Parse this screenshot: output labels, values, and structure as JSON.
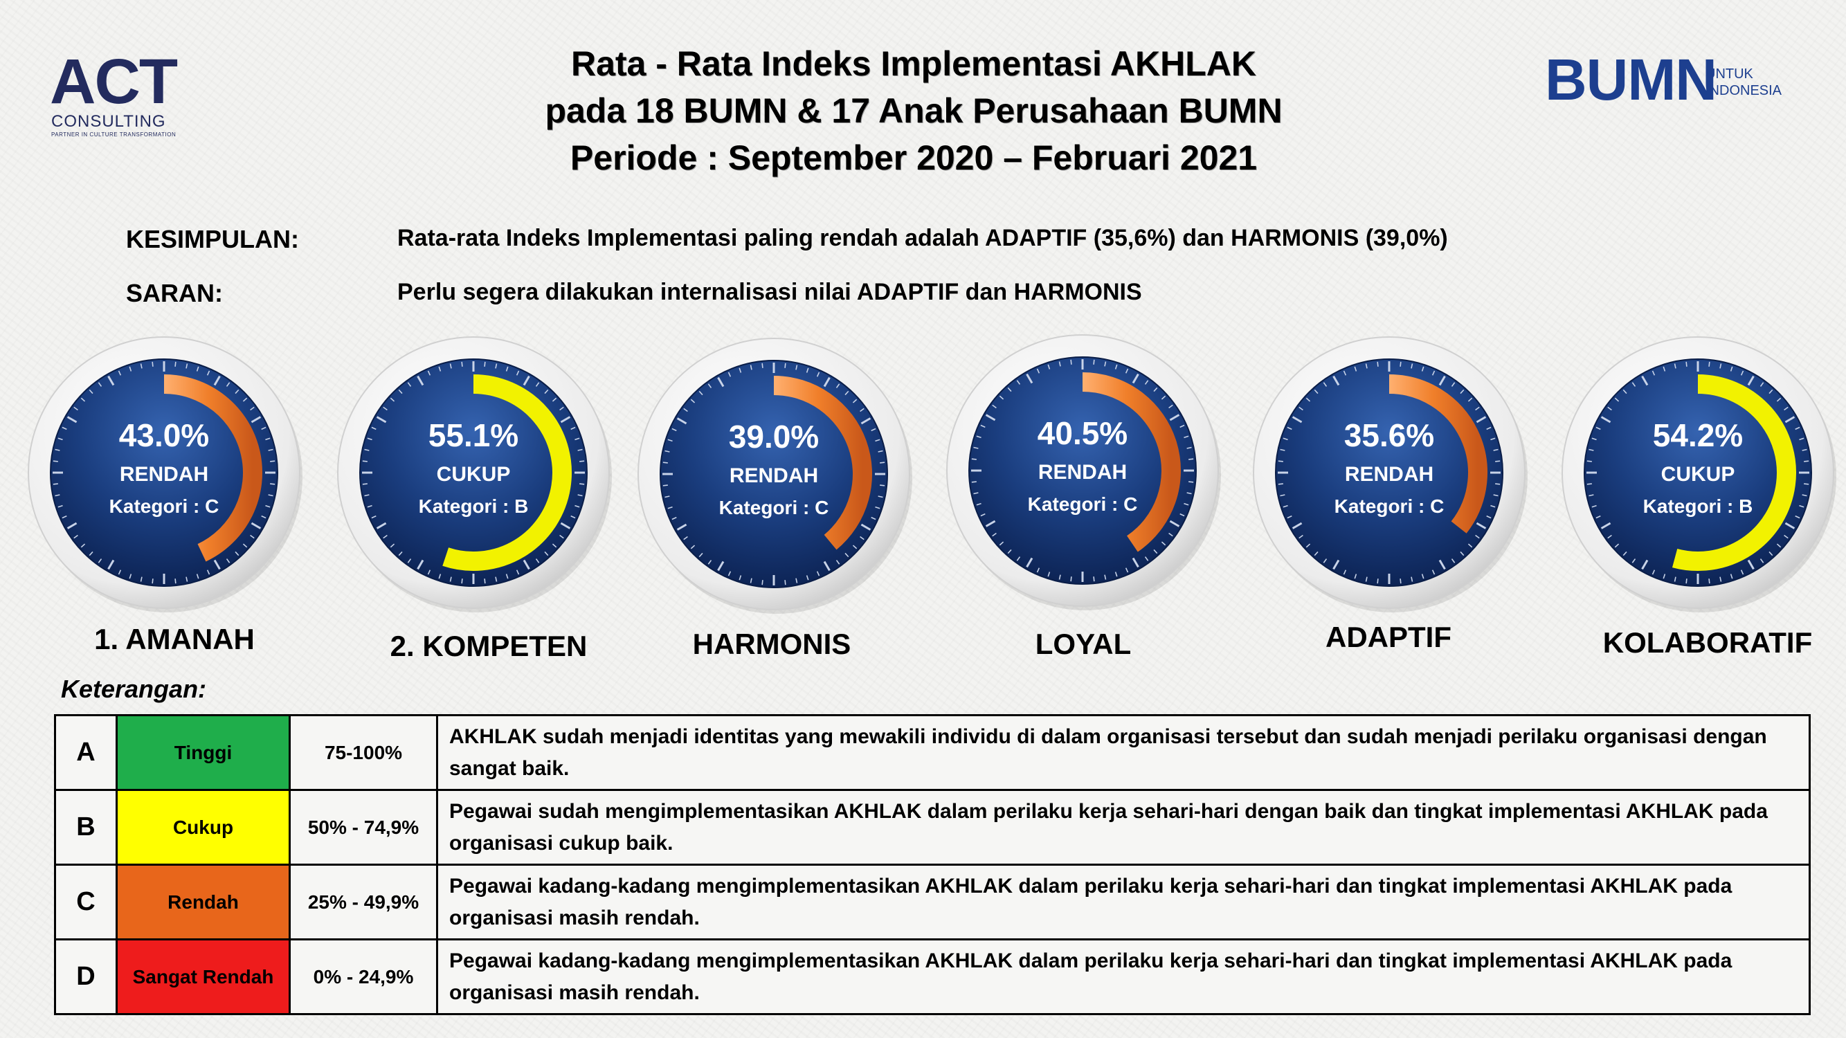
{
  "logos": {
    "act_main": "ACT",
    "act_sub": "CONSULTING",
    "act_tag": "PARTNER IN CULTURE TRANSFORMATION",
    "bumn_main": "BUMN",
    "bumn_sub1": "UNTUK",
    "bumn_sub2": "INDONESIA"
  },
  "header": {
    "title_lines": [
      "Rata - Rata Indeks Implementasi AKHLAK",
      "pada 18 BUMN & 17 Anak Perusahaan BUMN",
      "Periode : September 2020 – Februari 2021"
    ]
  },
  "conclusion": {
    "kesimpulan_label": "KESIMPULAN:",
    "kesimpulan_text": "Rata-rata Indeks Implementasi paling rendah adalah  ADAPTIF (35,6%)  dan HARMONIS (39,0%)",
    "saran_label": "SARAN:",
    "saran_text": "Perlu segera dilakukan internalisasi nilai ADAPTIF dan HARMONIS"
  },
  "chart_data": {
    "type": "gauge",
    "scale": [
      0,
      100
    ],
    "colors": {
      "C": "#f07f2a",
      "B": "#f2f200"
    },
    "gauges": [
      {
        "label": "1. AMANAH",
        "value": 43.0,
        "value_text": "43.0%",
        "status": "RENDAH",
        "kategori": "Kategori : C",
        "grade": "C"
      },
      {
        "label": "2. KOMPETEN",
        "value": 55.1,
        "value_text": "55.1%",
        "status": "CUKUP",
        "kategori": "Kategori : B",
        "grade": "B"
      },
      {
        "label": "HARMONIS",
        "value": 39.0,
        "value_text": "39.0%",
        "status": "RENDAH",
        "kategori": "Kategori : C",
        "grade": "C"
      },
      {
        "label": "LOYAL",
        "value": 40.5,
        "value_text": "40.5%",
        "status": "RENDAH",
        "kategori": "Kategori : C",
        "grade": "C"
      },
      {
        "label": "ADAPTIF",
        "value": 35.6,
        "value_text": "35.6%",
        "status": "RENDAH",
        "kategori": "Kategori : C",
        "grade": "C"
      },
      {
        "label": "KOLABORATIF",
        "value": 54.2,
        "value_text": "54.2%",
        "status": "CUKUP",
        "kategori": "Kategori : B",
        "grade": "B"
      }
    ]
  },
  "legend": {
    "title": "Keterangan:",
    "rows": [
      {
        "level": "A",
        "category": "Tinggi",
        "range": "75-100%",
        "color": "#1fae4b",
        "text_color": "#000000",
        "description": "AKHLAK sudah menjadi identitas yang mewakili individu di dalam organisasi tersebut dan sudah menjadi perilaku organisasi dengan sangat baik."
      },
      {
        "level": "B",
        "category": "Cukup",
        "range": "50% - 74,9%",
        "color": "#ffff00",
        "text_color": "#000000",
        "description": "Pegawai  sudah mengimplementasikan AKHLAK dalam perilaku kerja sehari-hari dengan baik dan tingkat implementasi AKHLAK pada organisasi cukup baik."
      },
      {
        "level": "C",
        "category": "Rendah",
        "range": "25% - 49,9%",
        "color": "#e8661b",
        "text_color": "#000000",
        "description": "Pegawai kadang-kadang mengimplementasikan AKHLAK dalam perilaku kerja sehari-hari dan tingkat implementasi AKHLAK pada organisasi masih rendah."
      },
      {
        "level": "D",
        "category": "Sangat Rendah",
        "range": "0% - 24,9%",
        "color": "#ee1c1c",
        "text_color": "#000000",
        "description": "Pegawai kadang-kadang mengimplementasikan AKHLAK dalam perilaku kerja sehari-hari dan tingkat implementasi AKHLAK pada organisasi masih rendah."
      }
    ]
  }
}
